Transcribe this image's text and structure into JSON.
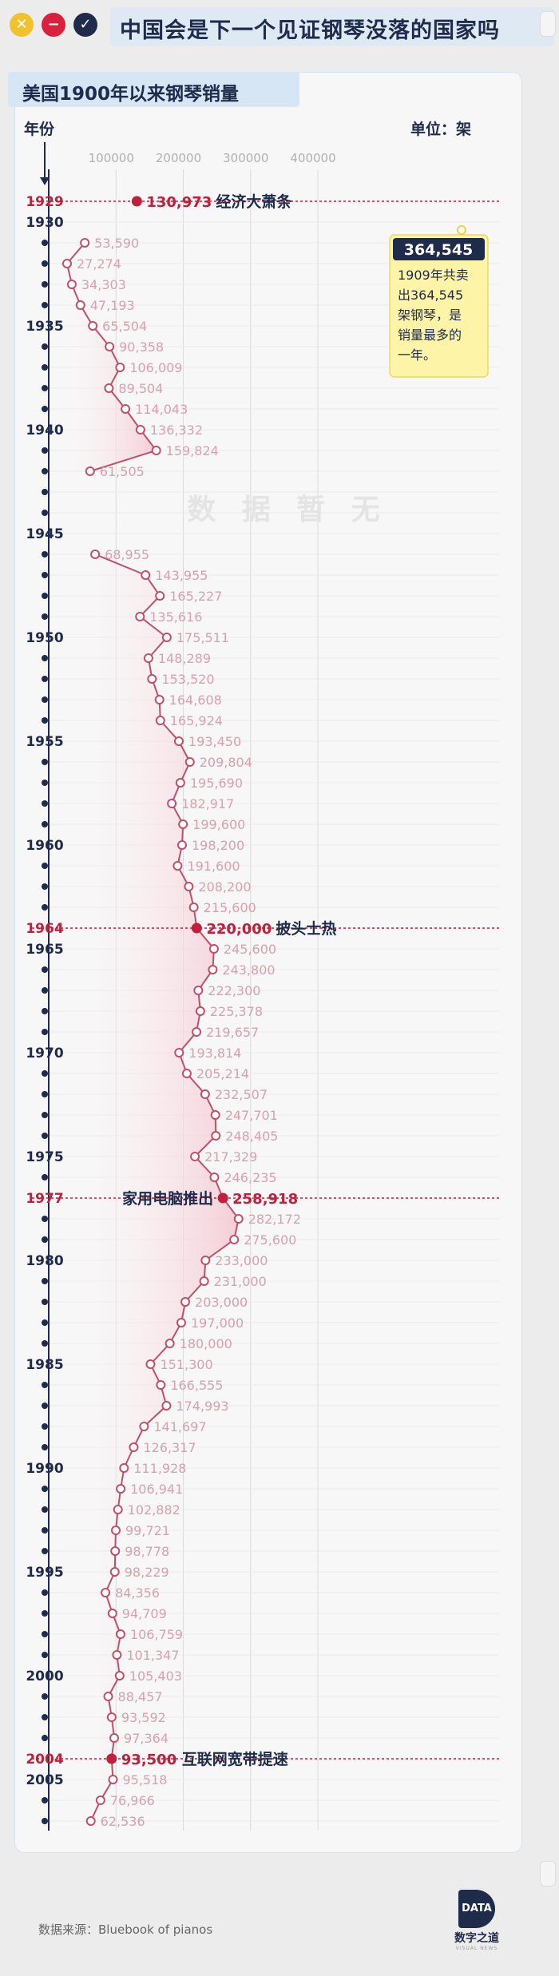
{
  "window": {
    "title": "中国会是下一个见证钢琴没落的国家吗",
    "buttons": [
      "close",
      "minimize",
      "confirm"
    ]
  },
  "chart_title": "美国1900年以来钢琴销量",
  "unit_label": "单位：架",
  "year_axis_label": "年份",
  "source": "数据来源：Bluebook of pianos",
  "logo": {
    "mark": "DATA",
    "name": "数字之道",
    "tagline": "VISUAL NEWS"
  },
  "colors": {
    "accent": "#c0203c",
    "line": "#c0506a",
    "label": "#d9a0ae",
    "fill": "#f4c9d2",
    "axis": "#1e2b4a"
  },
  "chart_data": {
    "type": "line",
    "orientation": "vertical-time",
    "title": "美国1900年以来钢琴销量",
    "unit": "架",
    "xlim": [
      0,
      400000
    ],
    "x_ticks": [
      100000,
      200000,
      300000,
      400000
    ],
    "year_ticks": [
      1930,
      1935,
      1940,
      1945,
      1950,
      1955,
      1960,
      1965,
      1970,
      1975,
      1980,
      1985,
      1990,
      1995,
      2000,
      2005
    ],
    "gap_label": "数 据 暂 无",
    "series": [
      {
        "years": [
          1931,
          1932,
          1933,
          1934,
          1935,
          1936,
          1937,
          1938,
          1939,
          1940,
          1941,
          1942
        ],
        "values": [
          53590,
          27274,
          34303,
          47193,
          65504,
          90358,
          106009,
          89504,
          114043,
          136332,
          159824,
          61505
        ]
      },
      {
        "years": [
          1946,
          1947,
          1948,
          1949,
          1950,
          1951,
          1952,
          1953,
          1954,
          1955,
          1956,
          1957,
          1958,
          1959,
          1960,
          1961,
          1962,
          1963,
          1964,
          1965,
          1966,
          1967,
          1968,
          1969,
          1970,
          1971,
          1972,
          1973,
          1974,
          1975,
          1976,
          1977,
          1978,
          1979,
          1980,
          1981,
          1982,
          1983,
          1984,
          1985,
          1986,
          1987,
          1988,
          1989,
          1990,
          1991,
          1992,
          1993,
          1994,
          1995,
          1996,
          1997,
          1998,
          1999,
          2000,
          2001,
          2002,
          2003,
          2004,
          2005,
          2006,
          2007
        ],
        "values": [
          68955,
          143955,
          165227,
          135616,
          175511,
          148289,
          153520,
          164608,
          165924,
          193450,
          209804,
          195690,
          182917,
          199600,
          198200,
          191600,
          208200,
          215600,
          220000,
          245600,
          243800,
          222300,
          225378,
          219657,
          193814,
          205214,
          232507,
          247701,
          248405,
          217329,
          246235,
          258918,
          282172,
          275600,
          233000,
          231000,
          203000,
          197000,
          180000,
          151300,
          166555,
          174993,
          141697,
          126317,
          111928,
          106941,
          102882,
          99721,
          98778,
          98229,
          84356,
          94709,
          106759,
          101347,
          105403,
          88457,
          93592,
          97364,
          93500,
          95518,
          76966,
          62536
        ]
      }
    ],
    "highlights": [
      {
        "year": 1929,
        "value": 130973,
        "value_label": "130,973",
        "note": "经济大萧条"
      },
      {
        "year": 1964,
        "value": 220000,
        "value_label": "220,000",
        "note": "披头士热"
      },
      {
        "year": 1977,
        "value": 258918,
        "value_label": "258,918",
        "note": "家用电脑推出"
      },
      {
        "year": 2004,
        "value": 93500,
        "value_label": "93,500",
        "note": "互联网宽带提速"
      }
    ],
    "callout": {
      "value_label": "364,545",
      "text_lines": [
        "1909年共卖",
        "出364,545",
        "架钢琴，是",
        "销量最多的",
        "一年。"
      ]
    }
  }
}
